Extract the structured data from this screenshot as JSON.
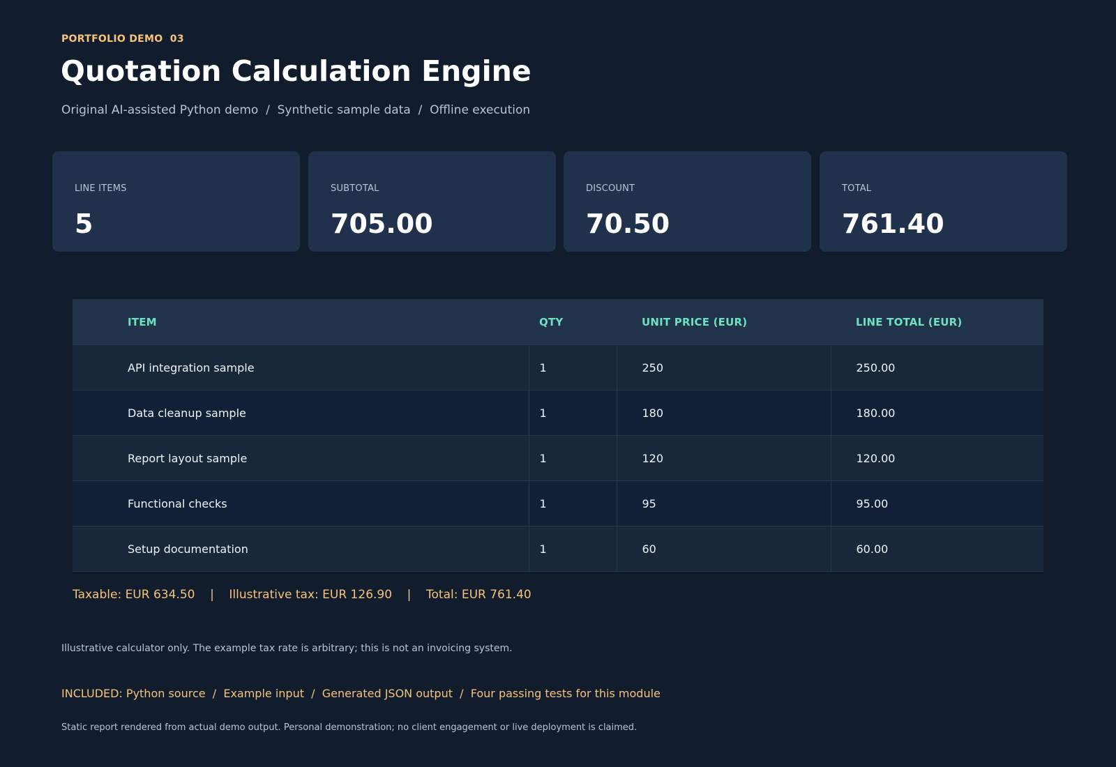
{
  "header": {
    "eyebrow": "PORTFOLIO DEMO  03",
    "title": "Quotation Calculation Engine",
    "subtitle": "Original AI-assisted Python demo  /  Synthetic sample data  /  Offline execution"
  },
  "cards": [
    {
      "label": "LINE ITEMS",
      "value": "5"
    },
    {
      "label": "SUBTOTAL",
      "value": "705.00"
    },
    {
      "label": "DISCOUNT",
      "value": "70.50"
    },
    {
      "label": "TOTAL",
      "value": "761.40"
    }
  ],
  "table": {
    "headers": {
      "item": "ITEM",
      "qty": "QTY",
      "unit_price": "UNIT PRICE (EUR)",
      "line_total": "LINE TOTAL (EUR)"
    },
    "rows": [
      {
        "item": "API integration sample",
        "qty": "1",
        "unit_price": "250",
        "line_total": "250.00"
      },
      {
        "item": "Data cleanup sample",
        "qty": "1",
        "unit_price": "180",
        "line_total": "180.00"
      },
      {
        "item": "Report layout sample",
        "qty": "1",
        "unit_price": "120",
        "line_total": "120.00"
      },
      {
        "item": "Functional checks",
        "qty": "1",
        "unit_price": "95",
        "line_total": "95.00"
      },
      {
        "item": "Setup documentation",
        "qty": "1",
        "unit_price": "60",
        "line_total": "60.00"
      }
    ]
  },
  "summary": "Taxable: EUR 634.50    |    Illustrative tax: EUR 126.90    |    Total: EUR 761.40",
  "disclaimer": "Illustrative calculator only. The example tax rate is arbitrary; this is not an invoicing system.",
  "included": "INCLUDED: Python source  /  Example input  /  Generated JSON output  /  Four passing tests for this module",
  "footnote": "Static report rendered from actual demo output. Personal demonstration; no client engagement or live deployment is claimed.",
  "colors": {
    "background": "#111c2d",
    "card": "#20324b",
    "accent_orange": "#f7c27a",
    "accent_teal": "#6fe0c0",
    "muted_text": "#b9c4d4"
  }
}
